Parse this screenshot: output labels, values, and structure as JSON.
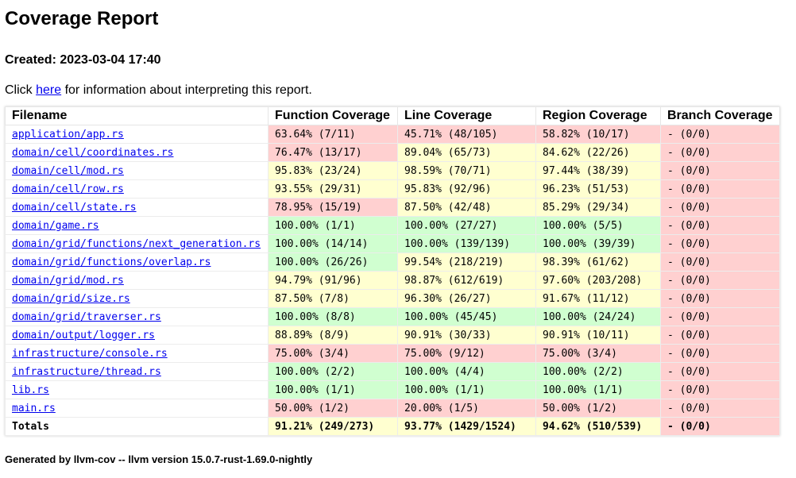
{
  "report": {
    "title": "Coverage Report",
    "created": "Created: 2023-03-04 17:40",
    "info_prefix": "Click ",
    "info_link": "here",
    "info_suffix": " for information about interpreting this report.",
    "footer": "Generated by llvm-cov -- llvm version 15.0.7-rust-1.69.0-nightly"
  },
  "colors": {
    "red": "#ffd0d0",
    "yellow": "#ffffd0",
    "green": "#d0ffd0",
    "link": "#0000ee"
  },
  "table": {
    "headers": [
      "Filename",
      "Function Coverage",
      "Line Coverage",
      "Region Coverage",
      "Branch Coverage"
    ],
    "rows": [
      {
        "file": "application/app.rs",
        "func": "63.64% (7/11)",
        "func_c": "red",
        "line": "45.71% (48/105)",
        "line_c": "red",
        "region": "58.82% (10/17)",
        "region_c": "red",
        "branch": "- (0/0)",
        "branch_c": "red"
      },
      {
        "file": "domain/cell/coordinates.rs",
        "func": "76.47% (13/17)",
        "func_c": "red",
        "line": "89.04% (65/73)",
        "line_c": "yellow",
        "region": "84.62% (22/26)",
        "region_c": "yellow",
        "branch": "- (0/0)",
        "branch_c": "red"
      },
      {
        "file": "domain/cell/mod.rs",
        "func": "95.83% (23/24)",
        "func_c": "yellow",
        "line": "98.59% (70/71)",
        "line_c": "yellow",
        "region": "97.44% (38/39)",
        "region_c": "yellow",
        "branch": "- (0/0)",
        "branch_c": "red"
      },
      {
        "file": "domain/cell/row.rs",
        "func": "93.55% (29/31)",
        "func_c": "yellow",
        "line": "95.83% (92/96)",
        "line_c": "yellow",
        "region": "96.23% (51/53)",
        "region_c": "yellow",
        "branch": "- (0/0)",
        "branch_c": "red"
      },
      {
        "file": "domain/cell/state.rs",
        "func": "78.95% (15/19)",
        "func_c": "red",
        "line": "87.50% (42/48)",
        "line_c": "yellow",
        "region": "85.29% (29/34)",
        "region_c": "yellow",
        "branch": "- (0/0)",
        "branch_c": "red"
      },
      {
        "file": "domain/game.rs",
        "func": "100.00% (1/1)",
        "func_c": "green",
        "line": "100.00% (27/27)",
        "line_c": "green",
        "region": "100.00% (5/5)",
        "region_c": "green",
        "branch": "- (0/0)",
        "branch_c": "red"
      },
      {
        "file": "domain/grid/functions/next_generation.rs",
        "func": "100.00% (14/14)",
        "func_c": "green",
        "line": "100.00% (139/139)",
        "line_c": "green",
        "region": "100.00% (39/39)",
        "region_c": "green",
        "branch": "- (0/0)",
        "branch_c": "red"
      },
      {
        "file": "domain/grid/functions/overlap.rs",
        "func": "100.00% (26/26)",
        "func_c": "green",
        "line": "99.54% (218/219)",
        "line_c": "yellow",
        "region": "98.39% (61/62)",
        "region_c": "yellow",
        "branch": "- (0/0)",
        "branch_c": "red"
      },
      {
        "file": "domain/grid/mod.rs",
        "func": "94.79% (91/96)",
        "func_c": "yellow",
        "line": "98.87% (612/619)",
        "line_c": "yellow",
        "region": "97.60% (203/208)",
        "region_c": "yellow",
        "branch": "- (0/0)",
        "branch_c": "red"
      },
      {
        "file": "domain/grid/size.rs",
        "func": "87.50% (7/8)",
        "func_c": "yellow",
        "line": "96.30% (26/27)",
        "line_c": "yellow",
        "region": "91.67% (11/12)",
        "region_c": "yellow",
        "branch": "- (0/0)",
        "branch_c": "red"
      },
      {
        "file": "domain/grid/traverser.rs",
        "func": "100.00% (8/8)",
        "func_c": "green",
        "line": "100.00% (45/45)",
        "line_c": "green",
        "region": "100.00% (24/24)",
        "region_c": "green",
        "branch": "- (0/0)",
        "branch_c": "red"
      },
      {
        "file": "domain/output/logger.rs",
        "func": "88.89% (8/9)",
        "func_c": "yellow",
        "line": "90.91% (30/33)",
        "line_c": "yellow",
        "region": "90.91% (10/11)",
        "region_c": "yellow",
        "branch": "- (0/0)",
        "branch_c": "red"
      },
      {
        "file": "infrastructure/console.rs",
        "func": "75.00% (3/4)",
        "func_c": "red",
        "line": "75.00% (9/12)",
        "line_c": "red",
        "region": "75.00% (3/4)",
        "region_c": "red",
        "branch": "- (0/0)",
        "branch_c": "red"
      },
      {
        "file": "infrastructure/thread.rs",
        "func": "100.00% (2/2)",
        "func_c": "green",
        "line": "100.00% (4/4)",
        "line_c": "green",
        "region": "100.00% (2/2)",
        "region_c": "green",
        "branch": "- (0/0)",
        "branch_c": "red"
      },
      {
        "file": "lib.rs",
        "func": "100.00% (1/1)",
        "func_c": "green",
        "line": "100.00% (1/1)",
        "line_c": "green",
        "region": "100.00% (1/1)",
        "region_c": "green",
        "branch": "- (0/0)",
        "branch_c": "red"
      },
      {
        "file": "main.rs",
        "func": "50.00% (1/2)",
        "func_c": "red",
        "line": "20.00% (1/5)",
        "line_c": "red",
        "region": "50.00% (1/2)",
        "region_c": "red",
        "branch": "- (0/0)",
        "branch_c": "red"
      }
    ],
    "totals": {
      "label": "Totals",
      "func": "91.21% (249/273)",
      "func_c": "yellow",
      "line": "93.77% (1429/1524)",
      "line_c": "yellow",
      "region": "94.62% (510/539)",
      "region_c": "yellow",
      "branch": "- (0/0)",
      "branch_c": "red"
    }
  }
}
